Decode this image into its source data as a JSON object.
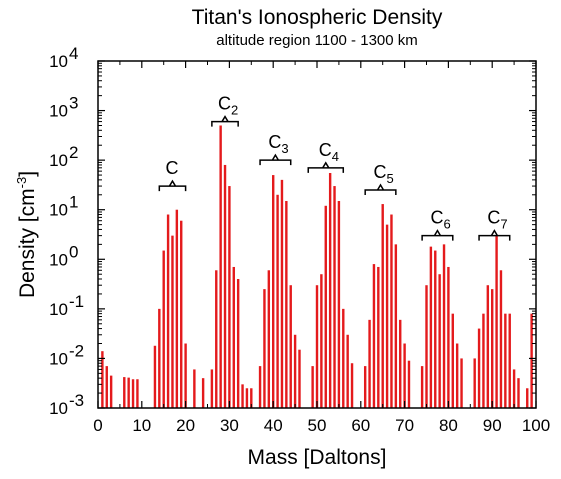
{
  "chart_data": {
    "type": "bar",
    "title": "Titan's Ionospheric Density",
    "subtitle": "altitude region 1100 - 1300 km",
    "xlabel": "Mass [Daltons]",
    "ylabel_main": "Density [cm",
    "ylabel_sup": "-3",
    "ylabel_end": "]",
    "xlim": [
      0,
      100
    ],
    "ylim": [
      0.001,
      10000
    ],
    "yscale": "log",
    "bar_color": "#e41a1c",
    "x_ticks": [
      0,
      10,
      20,
      30,
      40,
      50,
      60,
      70,
      80,
      90,
      100
    ],
    "x_tick_labels": [
      "0",
      "10",
      "20",
      "30",
      "40",
      "50",
      "60",
      "70",
      "80",
      "90",
      "100"
    ],
    "y_ticks": [
      {
        "value": 0.001,
        "base": "10",
        "exp": "-3"
      },
      {
        "value": 0.01,
        "base": "10",
        "exp": "-2"
      },
      {
        "value": 0.1,
        "base": "10",
        "exp": "-1"
      },
      {
        "value": 1,
        "base": "10",
        "exp": "0"
      },
      {
        "value": 10,
        "base": "10",
        "exp": "1"
      },
      {
        "value": 100,
        "base": "10",
        "exp": "2"
      },
      {
        "value": 1000,
        "base": "10",
        "exp": "3"
      },
      {
        "value": 10000,
        "base": "10",
        "exp": "4"
      }
    ],
    "bars": [
      {
        "x": 1,
        "y": 0.014
      },
      {
        "x": 2,
        "y": 0.007
      },
      {
        "x": 3,
        "y": 0.0045
      },
      {
        "x": 6,
        "y": 0.0042
      },
      {
        "x": 7,
        "y": 0.0041
      },
      {
        "x": 8,
        "y": 0.0038
      },
      {
        "x": 9,
        "y": 0.0038
      },
      {
        "x": 13,
        "y": 0.018
      },
      {
        "x": 14,
        "y": 0.1
      },
      {
        "x": 15,
        "y": 1.5
      },
      {
        "x": 16,
        "y": 8
      },
      {
        "x": 17,
        "y": 3
      },
      {
        "x": 18,
        "y": 10
      },
      {
        "x": 19,
        "y": 6
      },
      {
        "x": 20,
        "y": 0.02
      },
      {
        "x": 22,
        "y": 0.006
      },
      {
        "x": 24,
        "y": 0.004
      },
      {
        "x": 26,
        "y": 0.006
      },
      {
        "x": 27,
        "y": 0.6
      },
      {
        "x": 28,
        "y": 500
      },
      {
        "x": 29,
        "y": 80
      },
      {
        "x": 30,
        "y": 30
      },
      {
        "x": 31,
        "y": 0.7
      },
      {
        "x": 32,
        "y": 0.4
      },
      {
        "x": 33,
        "y": 0.003
      },
      {
        "x": 34,
        "y": 0.0025
      },
      {
        "x": 35,
        "y": 0.0025
      },
      {
        "x": 37,
        "y": 0.007
      },
      {
        "x": 38,
        "y": 0.25
      },
      {
        "x": 39,
        "y": 0.6
      },
      {
        "x": 40,
        "y": 50
      },
      {
        "x": 41,
        "y": 20
      },
      {
        "x": 42,
        "y": 40
      },
      {
        "x": 43,
        "y": 15
      },
      {
        "x": 44,
        "y": 0.3
      },
      {
        "x": 45,
        "y": 0.03
      },
      {
        "x": 46,
        "y": 0.015
      },
      {
        "x": 49,
        "y": 0.007
      },
      {
        "x": 50,
        "y": 0.3
      },
      {
        "x": 51,
        "y": 0.5
      },
      {
        "x": 52,
        "y": 12
      },
      {
        "x": 53,
        "y": 55
      },
      {
        "x": 54,
        "y": 30
      },
      {
        "x": 55,
        "y": 15
      },
      {
        "x": 56,
        "y": 0.1
      },
      {
        "x": 57,
        "y": 0.03
      },
      {
        "x": 58,
        "y": 0.008
      },
      {
        "x": 61,
        "y": 0.007
      },
      {
        "x": 62,
        "y": 0.06
      },
      {
        "x": 63,
        "y": 0.8
      },
      {
        "x": 64,
        "y": 0.7
      },
      {
        "x": 65,
        "y": 13
      },
      {
        "x": 66,
        "y": 5
      },
      {
        "x": 67,
        "y": 8
      },
      {
        "x": 68,
        "y": 2
      },
      {
        "x": 69,
        "y": 0.06
      },
      {
        "x": 70,
        "y": 0.02
      },
      {
        "x": 71,
        "y": 0.009
      },
      {
        "x": 74,
        "y": 0.007
      },
      {
        "x": 75,
        "y": 0.3
      },
      {
        "x": 76,
        "y": 1.8
      },
      {
        "x": 77,
        "y": 1.5
      },
      {
        "x": 78,
        "y": 0.5
      },
      {
        "x": 79,
        "y": 2
      },
      {
        "x": 80,
        "y": 0.7
      },
      {
        "x": 81,
        "y": 0.08
      },
      {
        "x": 82,
        "y": 0.02
      },
      {
        "x": 83,
        "y": 0.01
      },
      {
        "x": 86,
        "y": 0.01
      },
      {
        "x": 87,
        "y": 0.04
      },
      {
        "x": 88,
        "y": 0.08
      },
      {
        "x": 89,
        "y": 0.3
      },
      {
        "x": 90,
        "y": 0.25
      },
      {
        "x": 91,
        "y": 3
      },
      {
        "x": 92,
        "y": 0.6
      },
      {
        "x": 93,
        "y": 0.08
      },
      {
        "x": 94,
        "y": 0.08
      },
      {
        "x": 95,
        "y": 0.006
      },
      {
        "x": 96,
        "y": 0.004
      },
      {
        "x": 98,
        "y": 0.0025
      },
      {
        "x": 99,
        "y": 0.08
      }
    ],
    "groups": [
      {
        "label": "C",
        "sub": "",
        "x_start": 14,
        "x_end": 20,
        "y": 30
      },
      {
        "label": "C",
        "sub": "2",
        "x_start": 26,
        "x_end": 32,
        "y": 600
      },
      {
        "label": "C",
        "sub": "3",
        "x_start": 37,
        "x_end": 44,
        "y": 100
      },
      {
        "label": "C",
        "sub": "4",
        "x_start": 48,
        "x_end": 56,
        "y": 70
      },
      {
        "label": "C",
        "sub": "5",
        "x_start": 61,
        "x_end": 68,
        "y": 25
      },
      {
        "label": "C",
        "sub": "6",
        "x_start": 74,
        "x_end": 81,
        "y": 3
      },
      {
        "label": "C",
        "sub": "7",
        "x_start": 87,
        "x_end": 94,
        "y": 3
      }
    ]
  }
}
